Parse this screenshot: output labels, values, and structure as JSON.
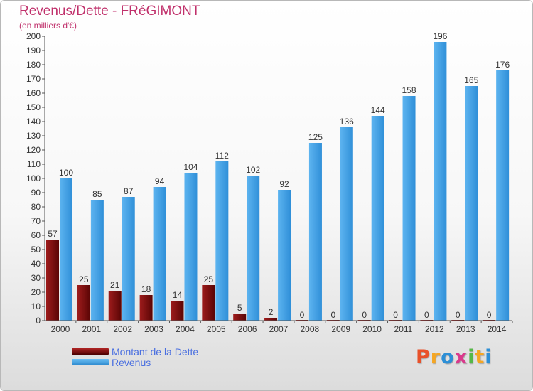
{
  "chart_data": {
    "type": "bar",
    "title": "Revenus/Dette - FRéGIMONT",
    "subtitle": "(en milliers d'€)",
    "categories": [
      "2000",
      "2001",
      "2002",
      "2003",
      "2004",
      "2005",
      "2006",
      "2007",
      "2008",
      "2009",
      "2010",
      "2011",
      "2012",
      "2013",
      "2014"
    ],
    "series": [
      {
        "name": "Montant de la Dette",
        "color": "#7a1010",
        "values": [
          57,
          25,
          21,
          18,
          14,
          25,
          5,
          2,
          0,
          0,
          0,
          0,
          0,
          0,
          0
        ]
      },
      {
        "name": "Revenus",
        "color": "#3f9de0",
        "values": [
          100,
          85,
          87,
          94,
          104,
          112,
          102,
          92,
          125,
          136,
          144,
          158,
          196,
          165,
          176
        ]
      }
    ],
    "ylim": [
      0,
      200
    ],
    "ytick_step": 10,
    "grid": false,
    "legend_position": "bottom-left"
  },
  "brand": "Proxiti"
}
